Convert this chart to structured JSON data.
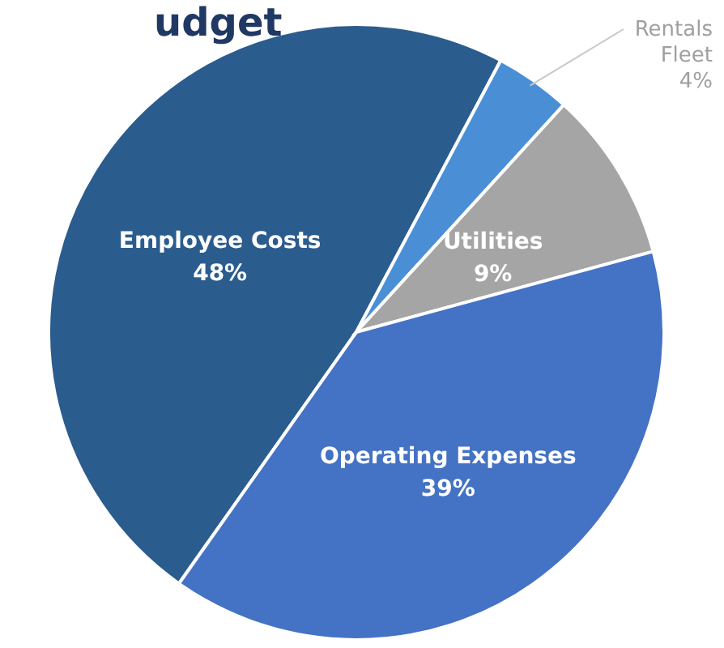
{
  "chart_data": {
    "type": "pie",
    "title": "udget",
    "categories": [
      "Employee Costs",
      "Rentals Fleet",
      "Utilities",
      "Operating Expenses"
    ],
    "values": [
      48,
      4,
      9,
      39
    ],
    "colors": [
      "#2b5c8e",
      "#4a8fd6",
      "#a5a5a5",
      "#4472c4"
    ],
    "value_labels": [
      "48%",
      "4%",
      "9%",
      "39%"
    ]
  }
}
